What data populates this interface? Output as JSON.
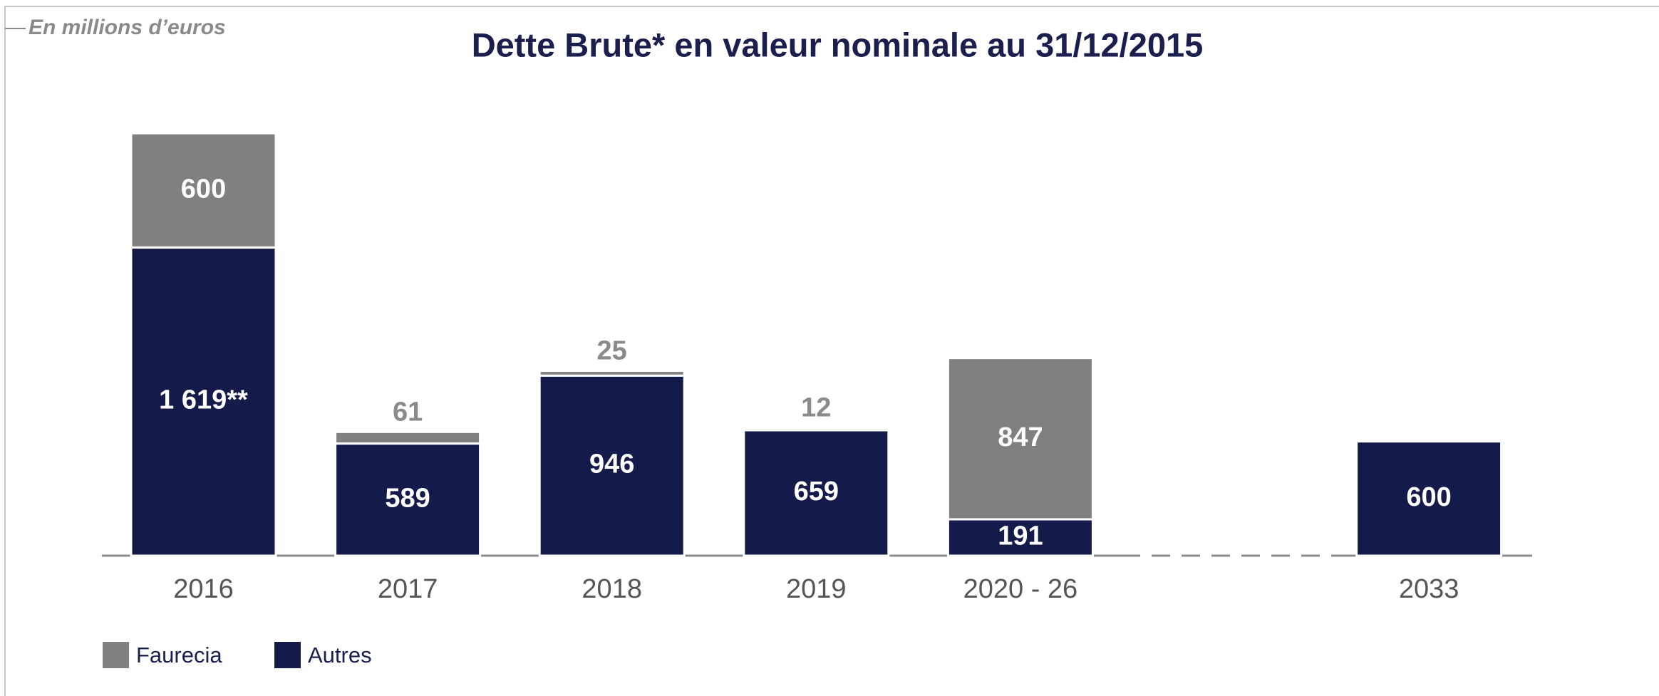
{
  "chart_data": {
    "type": "stacked-bar",
    "title": "Dette Brute* en valeur nominale au 31/12/2015",
    "subtitle": "En millions d’euros",
    "categories": [
      "2016",
      "2017",
      "2018",
      "2019",
      "2020 - 26",
      "2033"
    ],
    "series": [
      {
        "name": "Autres",
        "color": "#141a4a",
        "values": [
          1619,
          589,
          946,
          659,
          191,
          600
        ],
        "value_labels": [
          "1 619**",
          "589",
          "946",
          "659",
          "191",
          "600"
        ]
      },
      {
        "name": "Faurecia",
        "color": "#808080",
        "values": [
          600,
          61,
          25,
          12,
          847,
          null
        ]
      }
    ],
    "ylim": [
      0,
      2500
    ]
  }
}
